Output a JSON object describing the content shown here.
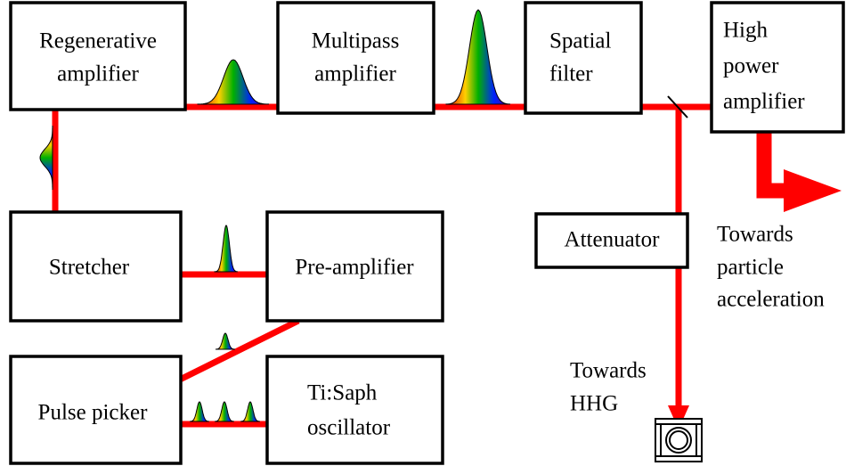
{
  "boxes": [
    {
      "label": [
        "Regenerative",
        "amplifier"
      ]
    },
    {
      "label": [
        "Multipass",
        "amplifier"
      ]
    },
    {
      "label": [
        "Spatial",
        "filter"
      ]
    },
    {
      "label": [
        "High",
        "power",
        "amplifier"
      ]
    },
    {
      "label": [
        "Stretcher"
      ]
    },
    {
      "label": [
        "Pre-amplifier"
      ]
    },
    {
      "label": [
        "Attenuator"
      ]
    },
    {
      "label": [
        "Pulse picker"
      ]
    },
    {
      "label": [
        "Ti:Saph",
        "oscillator"
      ]
    }
  ],
  "annotations": [
    {
      "label": [
        "Towards",
        "particle",
        "acceleration"
      ]
    },
    {
      "label": [
        "Towards",
        "HHG"
      ]
    }
  ]
}
